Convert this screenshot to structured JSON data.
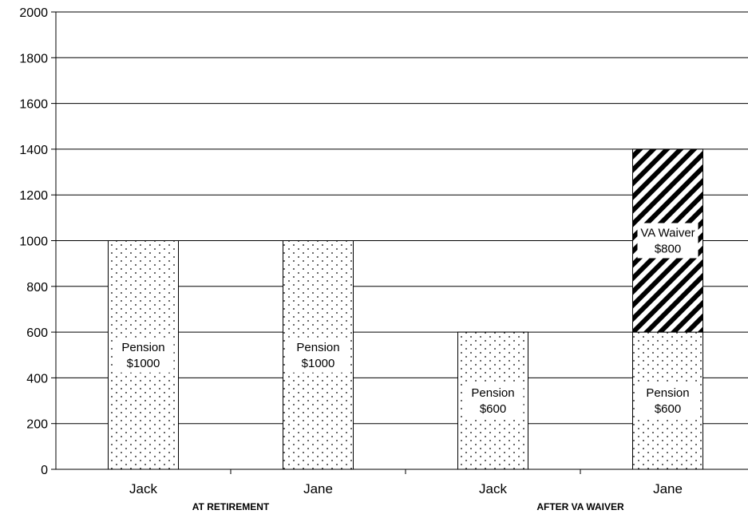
{
  "chart_data": {
    "type": "bar",
    "stacked": true,
    "ylim": [
      0,
      2000
    ],
    "yticks": [
      0,
      200,
      400,
      600,
      800,
      1000,
      1200,
      1400,
      1600,
      1800,
      2000
    ],
    "grid": true,
    "categories": [
      "Jack",
      "Jane",
      "Jack",
      "Jane"
    ],
    "groups": [
      {
        "label": "AT RETIREMENT",
        "categories": [
          0,
          1
        ]
      },
      {
        "label": "AFTER VA WAIVER",
        "categories": [
          2,
          3
        ]
      }
    ],
    "series": [
      {
        "values": [
          1000,
          1000,
          600,
          600
        ],
        "pattern": "dots",
        "labels": [
          [
            "Pension",
            "$1000"
          ],
          [
            "Pension",
            "$1000"
          ],
          [
            "Pension",
            "$600"
          ],
          [
            "Pension",
            "$600"
          ]
        ]
      },
      {
        "values": [
          0,
          0,
          0,
          800
        ],
        "pattern": "diagonal-stripes",
        "labels": [
          null,
          null,
          null,
          [
            "VA Waiver",
            "$800"
          ]
        ]
      }
    ]
  }
}
